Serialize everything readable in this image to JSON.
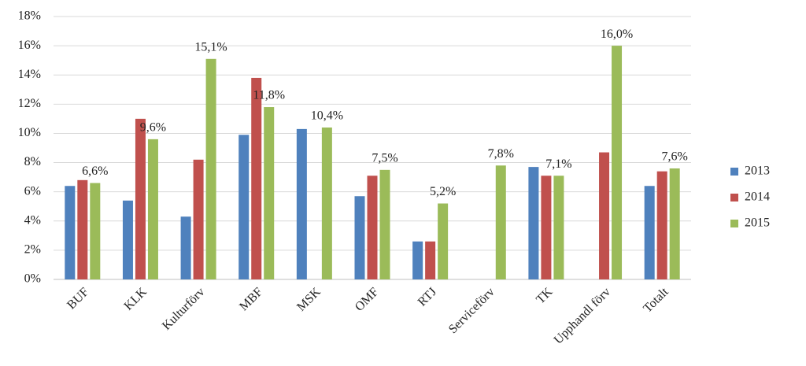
{
  "chart_data": {
    "type": "bar",
    "categories": [
      "BUF",
      "KLK",
      "Kulturförv",
      "MBF",
      "MSK",
      "OMF",
      "RTJ",
      "Serviceförv",
      "TK",
      "Upphandl förv",
      "Totalt"
    ],
    "series": [
      {
        "name": "2013",
        "color": "#4f81bd",
        "values": [
          6.4,
          5.4,
          4.3,
          9.9,
          10.3,
          5.7,
          2.6,
          null,
          7.7,
          null,
          6.4
        ]
      },
      {
        "name": "2014",
        "color": "#c0504d",
        "values": [
          6.8,
          11.0,
          8.2,
          13.8,
          null,
          7.1,
          2.6,
          null,
          7.1,
          8.7,
          7.4
        ]
      },
      {
        "name": "2015",
        "color": "#9bbb59",
        "values": [
          6.6,
          9.6,
          15.1,
          11.8,
          10.4,
          7.5,
          5.2,
          7.8,
          7.1,
          16.0,
          7.6
        ],
        "value_labels": [
          "6,6%",
          "9,6%",
          "15,1%",
          "11,8%",
          "10,4%",
          "7,5%",
          "5,2%",
          "7,8%",
          "7,1%",
          "16,0%",
          "7,6%"
        ]
      }
    ],
    "ylim": [
      0,
      18
    ],
    "yticks": [
      {
        "value": 0,
        "label": "0%"
      },
      {
        "value": 2,
        "label": "2%"
      },
      {
        "value": 4,
        "label": "4%"
      },
      {
        "value": 6,
        "label": "6%"
      },
      {
        "value": 8,
        "label": "8%"
      },
      {
        "value": 10,
        "label": "10%"
      },
      {
        "value": 12,
        "label": "12%"
      },
      {
        "value": 14,
        "label": "14%"
      },
      {
        "value": 16,
        "label": "16%"
      },
      {
        "value": 18,
        "label": "18%"
      }
    ],
    "grid": true,
    "legend": "right"
  }
}
